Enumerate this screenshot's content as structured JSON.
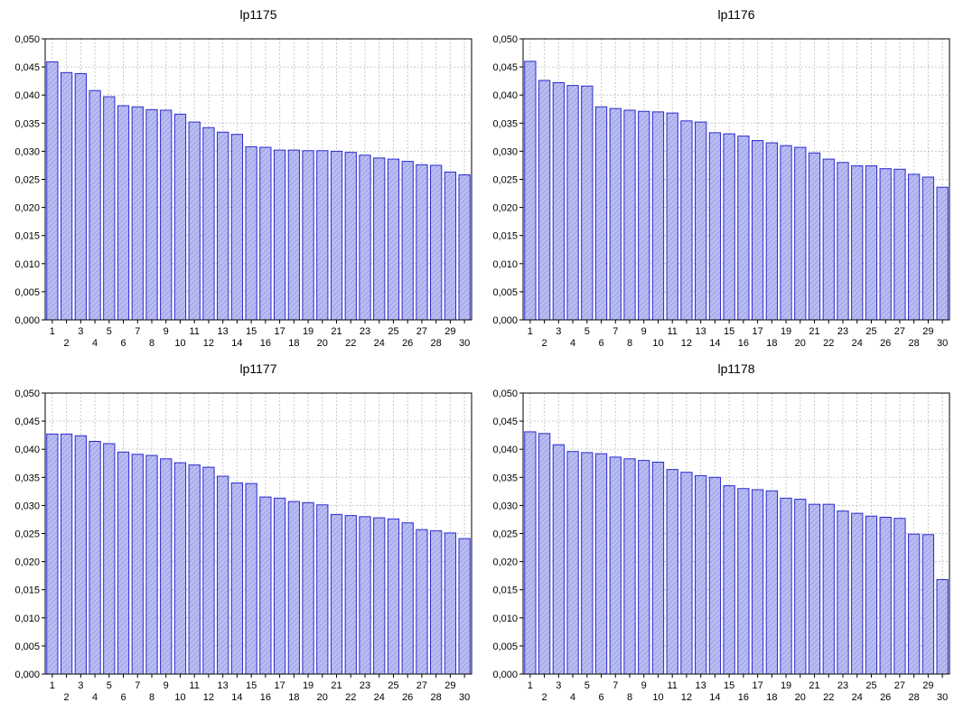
{
  "colors": {
    "bar_fill": "#b9bdf0",
    "bar_stroke": "#2a2ad0",
    "hatch": "#8a8ee6",
    "grid": "#c8c8c8"
  },
  "chart_data": [
    {
      "type": "bar",
      "title": "lp1175",
      "categories": [
        "1",
        "2",
        "3",
        "4",
        "5",
        "6",
        "7",
        "8",
        "9",
        "10",
        "11",
        "12",
        "13",
        "14",
        "15",
        "16",
        "17",
        "18",
        "19",
        "20",
        "21",
        "22",
        "23",
        "24",
        "25",
        "26",
        "27",
        "28",
        "29",
        "30"
      ],
      "values": [
        0.0459,
        0.044,
        0.0438,
        0.0408,
        0.0397,
        0.0381,
        0.0379,
        0.0374,
        0.0373,
        0.0366,
        0.0352,
        0.0342,
        0.0334,
        0.033,
        0.0308,
        0.0307,
        0.0302,
        0.0302,
        0.0301,
        0.0301,
        0.03,
        0.0298,
        0.0293,
        0.0288,
        0.0286,
        0.0282,
        0.0276,
        0.0275,
        0.0263,
        0.0258
      ],
      "yticks": [
        "0,000",
        "0,005",
        "0,010",
        "0,015",
        "0,020",
        "0,025",
        "0,030",
        "0,035",
        "0,040",
        "0,045",
        "0,050"
      ],
      "ylim": [
        0,
        0.05
      ],
      "grid": true
    },
    {
      "type": "bar",
      "title": "lp1176",
      "categories": [
        "1",
        "2",
        "3",
        "4",
        "5",
        "6",
        "7",
        "8",
        "9",
        "10",
        "11",
        "12",
        "13",
        "14",
        "15",
        "16",
        "17",
        "18",
        "19",
        "20",
        "21",
        "22",
        "23",
        "24",
        "25",
        "26",
        "27",
        "28",
        "29",
        "30"
      ],
      "values": [
        0.046,
        0.0426,
        0.0422,
        0.0417,
        0.0416,
        0.0379,
        0.0376,
        0.0373,
        0.0371,
        0.037,
        0.0368,
        0.0354,
        0.0352,
        0.0333,
        0.0331,
        0.0327,
        0.0319,
        0.0315,
        0.031,
        0.0307,
        0.0297,
        0.0286,
        0.028,
        0.0274,
        0.0274,
        0.0269,
        0.0268,
        0.0259,
        0.0254,
        0.0236
      ],
      "yticks": [
        "0,000",
        "0,005",
        "0,010",
        "0,015",
        "0,020",
        "0,025",
        "0,030",
        "0,035",
        "0,040",
        "0,045",
        "0,050"
      ],
      "ylim": [
        0,
        0.05
      ],
      "grid": true
    },
    {
      "type": "bar",
      "title": "lp1177",
      "categories": [
        "1",
        "2",
        "3",
        "4",
        "5",
        "6",
        "7",
        "8",
        "9",
        "10",
        "11",
        "12",
        "13",
        "14",
        "15",
        "16",
        "17",
        "18",
        "19",
        "20",
        "21",
        "22",
        "23",
        "24",
        "25",
        "26",
        "27",
        "28",
        "29",
        "30"
      ],
      "values": [
        0.0427,
        0.0427,
        0.0424,
        0.0414,
        0.041,
        0.0395,
        0.0391,
        0.0389,
        0.0383,
        0.0376,
        0.0372,
        0.0368,
        0.0352,
        0.034,
        0.0339,
        0.0315,
        0.0313,
        0.0307,
        0.0305,
        0.0301,
        0.0284,
        0.0282,
        0.028,
        0.0278,
        0.0276,
        0.0269,
        0.0257,
        0.0255,
        0.0251,
        0.0241
      ],
      "yticks": [
        "0,000",
        "0,005",
        "0,010",
        "0,015",
        "0,020",
        "0,025",
        "0,030",
        "0,035",
        "0,040",
        "0,045",
        "0,050"
      ],
      "ylim": [
        0,
        0.05
      ],
      "grid": true
    },
    {
      "type": "bar",
      "title": "lp1178",
      "categories": [
        "1",
        "2",
        "3",
        "4",
        "5",
        "6",
        "7",
        "8",
        "9",
        "10",
        "11",
        "12",
        "13",
        "14",
        "15",
        "16",
        "17",
        "18",
        "19",
        "20",
        "21",
        "22",
        "23",
        "24",
        "25",
        "26",
        "27",
        "28",
        "29",
        "30"
      ],
      "values": [
        0.0431,
        0.0428,
        0.0408,
        0.0396,
        0.0394,
        0.0392,
        0.0386,
        0.0383,
        0.038,
        0.0377,
        0.0364,
        0.0359,
        0.0353,
        0.035,
        0.0335,
        0.033,
        0.0328,
        0.0326,
        0.0313,
        0.0311,
        0.0302,
        0.0302,
        0.029,
        0.0286,
        0.0281,
        0.0279,
        0.0277,
        0.0249,
        0.0248,
        0.0168
      ],
      "yticks": [
        "0,000",
        "0,005",
        "0,010",
        "0,015",
        "0,020",
        "0,025",
        "0,030",
        "0,035",
        "0,040",
        "0,045",
        "0,050"
      ],
      "ylim": [
        0,
        0.05
      ],
      "grid": true
    }
  ]
}
